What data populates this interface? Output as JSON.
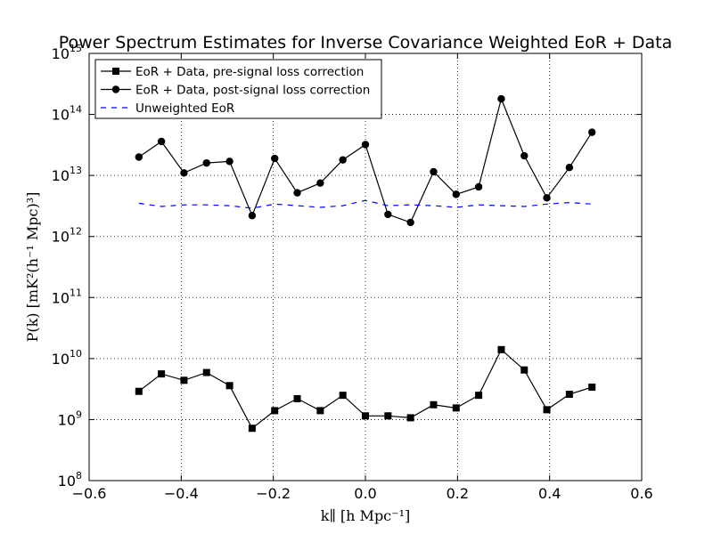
{
  "chart_data": {
    "type": "line",
    "title": "Power Spectrum Estimates for Inverse Covariance Weighted EoR + Data",
    "xlabel": "k∥ [h Mpc⁻¹]",
    "ylabel": "P(k) [mK²(h⁻¹ Mpc)³]",
    "xlim": [
      -0.6,
      0.6
    ],
    "ylim": [
      100000000.0,
      1000000000000000.0
    ],
    "yscale": "log",
    "grid": true,
    "legend_position": "upper-left",
    "x_ticks": [
      "−0.6",
      "−0.4",
      "−0.2",
      "0.0",
      "0.2",
      "0.4",
      "0.6"
    ],
    "y_ticks": [
      {
        "base": "10",
        "exp": "8"
      },
      {
        "base": "10",
        "exp": "9"
      },
      {
        "base": "10",
        "exp": "10"
      },
      {
        "base": "10",
        "exp": "11"
      },
      {
        "base": "10",
        "exp": "12"
      },
      {
        "base": "10",
        "exp": "13"
      },
      {
        "base": "10",
        "exp": "14"
      },
      {
        "base": "10",
        "exp": "15"
      }
    ],
    "x": [
      -0.492,
      -0.443,
      -0.394,
      -0.345,
      -0.295,
      -0.246,
      -0.197,
      -0.148,
      -0.098,
      -0.049,
      0.0,
      0.049,
      0.098,
      0.148,
      0.197,
      0.246,
      0.295,
      0.345,
      0.394,
      0.443,
      0.492
    ],
    "series": [
      {
        "name": "EoR + Data, pre-signal loss correction",
        "marker": "square",
        "color": "#000000",
        "linestyle": "solid",
        "values": [
          2900000000.0,
          5600000000.0,
          4400000000.0,
          5900000000.0,
          3600000000.0,
          720000000.0,
          1400000000.0,
          2200000000.0,
          1400000000.0,
          2500000000.0,
          1150000000.0,
          1150000000.0,
          1070000000.0,
          1750000000.0,
          1550000000.0,
          2500000000.0,
          14000000000.0,
          6500000000.0,
          1450000000.0,
          2600000000.0,
          3400000000.0
        ]
      },
      {
        "name": "EoR + Data, post-signal loss correction",
        "marker": "circle",
        "color": "#000000",
        "linestyle": "solid",
        "values": [
          20000000000000.0,
          36000000000000.0,
          11000000000000.0,
          16000000000000.0,
          17000000000000.0,
          2200000000000.0,
          19000000000000.0,
          5200000000000.0,
          7500000000000.0,
          18000000000000.0,
          32000000000000.0,
          2300000000000.0,
          1700000000000.0,
          11500000000000.0,
          4900000000000.0,
          6500000000000.0,
          180000000000000.0,
          21000000000000.0,
          4300000000000.0,
          13500000000000.0,
          51000000000000.0
        ]
      },
      {
        "name": "Unweighted EoR",
        "marker": "none",
        "color": "#0000ff",
        "linestyle": "dashed",
        "values": [
          3500000000000.0,
          3100000000000.0,
          3300000000000.0,
          3300000000000.0,
          3200000000000.0,
          2900000000000.0,
          3400000000000.0,
          3200000000000.0,
          3000000000000.0,
          3200000000000.0,
          3900000000000.0,
          3200000000000.0,
          3300000000000.0,
          3200000000000.0,
          3000000000000.0,
          3300000000000.0,
          3200000000000.0,
          3100000000000.0,
          3400000000000.0,
          3600000000000.0,
          3400000000000.0
        ]
      }
    ]
  }
}
